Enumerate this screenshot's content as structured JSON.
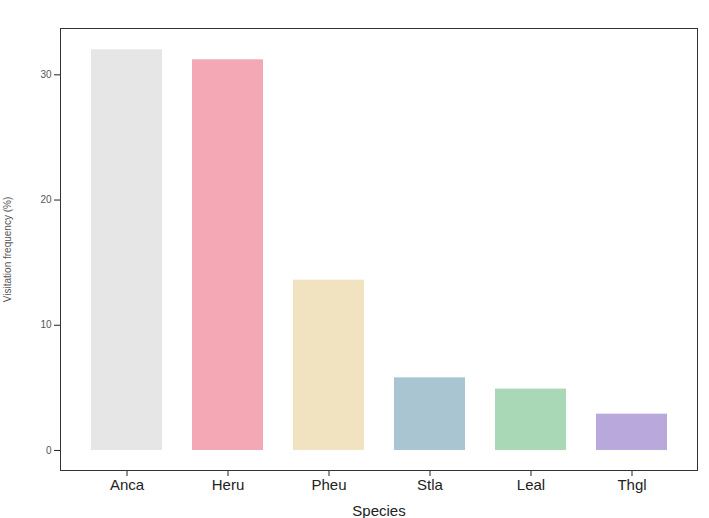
{
  "chart_data": {
    "type": "bar",
    "categories": [
      "Anca",
      "Heru",
      "Pheu",
      "Stla",
      "Leal",
      "Thgl"
    ],
    "values": [
      32.0,
      31.2,
      13.6,
      5.8,
      4.9,
      2.9
    ],
    "colors": [
      "#e6e6e6",
      "#f4a7b5",
      "#f2e3c0",
      "#a8c5d1",
      "#a8d8b5",
      "#b8a8dc"
    ],
    "x_label": "Species",
    "y_label": "Visitation frequency (%)",
    "ylim": [
      -1.6,
      33.7
    ],
    "yticks": [
      0,
      10,
      20,
      30
    ],
    "grid": false
  }
}
